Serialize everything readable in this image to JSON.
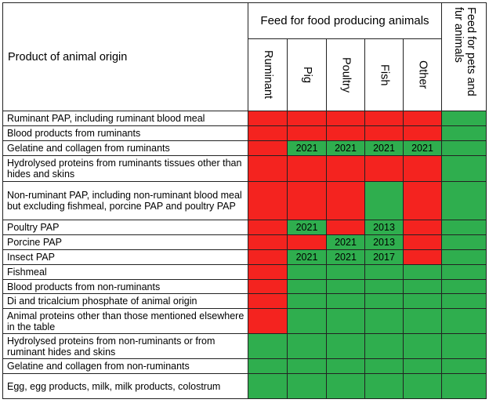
{
  "header": {
    "product_label": "Product of animal origin",
    "food_group_label": "Feed for food producing animals",
    "columns": [
      "Ruminant",
      "Pig",
      "Poultry",
      "Fish",
      "Other"
    ],
    "pets_label": "Feed for pets and fur animals"
  },
  "colors": {
    "prohibited": "#f4231f",
    "allowed": "#2fae4e"
  },
  "rows": [
    {
      "product": "Ruminant PAP, including ruminant blood meal",
      "cells": [
        "R",
        "R",
        "R",
        "R",
        "R",
        "G"
      ],
      "years": [
        "",
        "",
        "",
        "",
        "",
        ""
      ]
    },
    {
      "product": "Blood products from ruminants",
      "cells": [
        "R",
        "R",
        "R",
        "R",
        "R",
        "G"
      ],
      "years": [
        "",
        "",
        "",
        "",
        "",
        ""
      ]
    },
    {
      "product": "Gelatine and collagen from ruminants",
      "cells": [
        "R",
        "G",
        "G",
        "G",
        "G",
        "G"
      ],
      "years": [
        "",
        "2021",
        "2021",
        "2021",
        "2021",
        ""
      ]
    },
    {
      "product": "Hydrolysed proteins from ruminants tissues other than hides and skins",
      "cells": [
        "R",
        "R",
        "R",
        "R",
        "R",
        "G"
      ],
      "years": [
        "",
        "",
        "",
        "",
        "",
        ""
      ]
    },
    {
      "product": "Non-ruminant PAP, including non-ruminant blood meal but excluding fishmeal, porcine PAP and poultry PAP",
      "cells": [
        "R",
        "R",
        "R",
        "G",
        "R",
        "G"
      ],
      "years": [
        "",
        "",
        "",
        "",
        "",
        ""
      ]
    },
    {
      "product": "Poultry PAP",
      "cells": [
        "R",
        "G",
        "R",
        "G",
        "R",
        "G"
      ],
      "years": [
        "",
        "2021",
        "",
        "2013",
        "",
        ""
      ]
    },
    {
      "product": "Porcine PAP",
      "cells": [
        "R",
        "R",
        "G",
        "G",
        "R",
        "G"
      ],
      "years": [
        "",
        "",
        "2021",
        "2013",
        "",
        ""
      ]
    },
    {
      "product": "Insect PAP",
      "cells": [
        "R",
        "G",
        "G",
        "G",
        "R",
        "G"
      ],
      "years": [
        "",
        "2021",
        "2021",
        "2017",
        "",
        ""
      ]
    },
    {
      "product": "Fishmeal",
      "cells": [
        "R",
        "G",
        "G",
        "G",
        "G",
        "G"
      ],
      "years": [
        "",
        "",
        "",
        "",
        "",
        ""
      ]
    },
    {
      "product": "Blood products from non-ruminants",
      "cells": [
        "R",
        "G",
        "G",
        "G",
        "G",
        "G"
      ],
      "years": [
        "",
        "",
        "",
        "",
        "",
        ""
      ]
    },
    {
      "product": "Di and tricalcium phosphate of animal origin",
      "cells": [
        "R",
        "G",
        "G",
        "G",
        "G",
        "G"
      ],
      "years": [
        "",
        "",
        "",
        "",
        "",
        ""
      ]
    },
    {
      "product": "Animal proteins other than those mentioned elsewhere in the table",
      "cells": [
        "R",
        "G",
        "G",
        "G",
        "G",
        "G"
      ],
      "years": [
        "",
        "",
        "",
        "",
        "",
        ""
      ]
    },
    {
      "product": "Hydrolysed proteins from non-ruminants or from ruminant hides and skins",
      "cells": [
        "G",
        "G",
        "G",
        "G",
        "G",
        "G"
      ],
      "years": [
        "",
        "",
        "",
        "",
        "",
        ""
      ]
    },
    {
      "product": "Gelatine and collagen from non-ruminants",
      "cells": [
        "G",
        "G",
        "G",
        "G",
        "G",
        "G"
      ],
      "years": [
        "",
        "",
        "",
        "",
        "",
        ""
      ]
    },
    {
      "product": "Egg, egg products, milk, milk products, colostrum",
      "cells": [
        "G",
        "G",
        "G",
        "G",
        "G",
        "G"
      ],
      "years": [
        "",
        "",
        "",
        "",
        "",
        ""
      ]
    }
  ]
}
